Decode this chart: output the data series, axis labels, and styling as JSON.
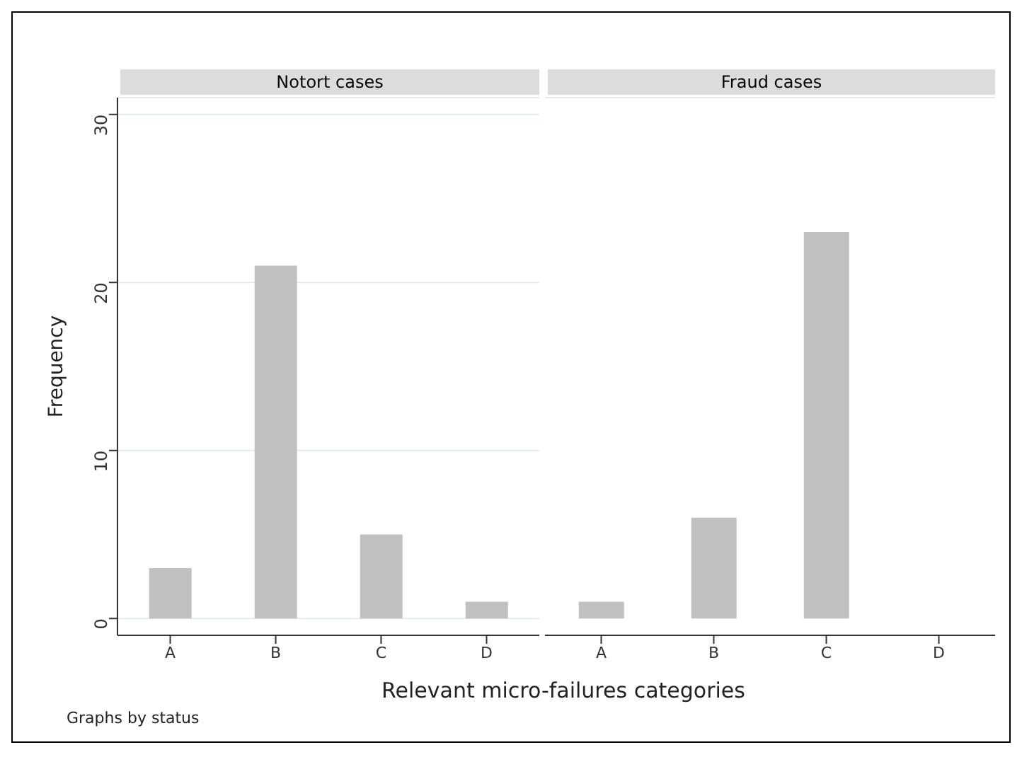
{
  "chart_data": [
    {
      "type": "bar",
      "title": "Notort cases",
      "categories": [
        "A",
        "B",
        "C",
        "D"
      ],
      "values": [
        3,
        21,
        5,
        1
      ],
      "color": "#c0c0c0",
      "ylim": [
        -1,
        31
      ],
      "yticks": [
        0,
        10,
        20,
        30
      ],
      "grid": "y",
      "ylabel": "Frequency",
      "xlabel": "Relevant micro-failures categories",
      "annotations": [
        "Graphs by status"
      ]
    },
    {
      "type": "bar",
      "title": "Fraud cases",
      "categories": [
        "A",
        "B",
        "C",
        "D"
      ],
      "values": [
        1,
        6,
        23,
        0
      ],
      "color": "#c0c0c0",
      "ylim": [
        -1,
        31
      ],
      "yticks": [
        0,
        10,
        20,
        30
      ],
      "grid": "y",
      "tick_labels": "x"
    }
  ]
}
